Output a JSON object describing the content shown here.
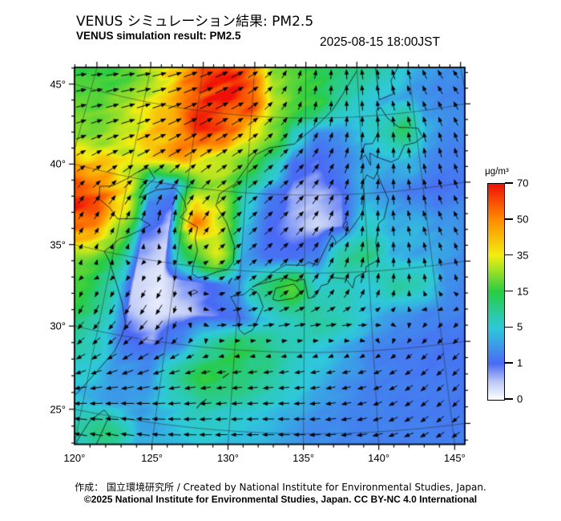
{
  "header": {
    "title_ja": "VENUS シミュレーション結果: PM2.5",
    "title_en": "VENUS simulation result: PM2.5",
    "datetime": "2025-08-15 18:00JST"
  },
  "footer": {
    "credit_line1": "作成： 国立環境研究所 / Created by National Institute for Environmental Studies, Japan.",
    "credit_line2": "©2025 National Institute for Environmental Studies, Japan. CC BY-NC 4.0 International"
  },
  "colorbar": {
    "unit": "μg/m³",
    "tick_values": [
      70,
      50,
      35,
      15,
      5,
      1,
      0
    ],
    "stops": [
      {
        "value": 0,
        "color": "#ffffff"
      },
      {
        "value": 0.5,
        "color": "#bcc8f5"
      },
      {
        "value": 1,
        "color": "#4a6af5"
      },
      {
        "value": 5,
        "color": "#2ec9da"
      },
      {
        "value": 15,
        "color": "#27cc44"
      },
      {
        "value": 35,
        "color": "#f2ee12"
      },
      {
        "value": 50,
        "color": "#ff8c00"
      },
      {
        "value": 70,
        "color": "#f01008"
      }
    ],
    "interval_values": [
      0,
      1,
      5,
      15,
      35,
      50,
      70
    ]
  },
  "axes": {
    "lon_ticks": [
      {
        "value": 120,
        "label": "120°"
      },
      {
        "value": 125,
        "label": "125°"
      },
      {
        "value": 130,
        "label": "130°"
      },
      {
        "value": 135,
        "label": "135°"
      },
      {
        "value": 140,
        "label": "140°"
      },
      {
        "value": 145,
        "label": "145°"
      }
    ],
    "lat_ticks": [
      {
        "value": 45,
        "label": "45°"
      },
      {
        "value": 40,
        "label": "40°"
      },
      {
        "value": 35,
        "label": "35°"
      },
      {
        "value": 30,
        "label": "30°"
      },
      {
        "value": 25,
        "label": "25°"
      }
    ]
  },
  "chart_data": {
    "type": "heatmap",
    "title": "VENUS simulation result: PM2.5",
    "units": "μg/m³",
    "field": {
      "lat_start": 22,
      "lat_step": 2,
      "lon_start": 116,
      "lon_step": 2,
      "values": [
        [
          3,
          4,
          6,
          8,
          4,
          3,
          3.5,
          3.5,
          3,
          2.5,
          2.5,
          2,
          2,
          1.8,
          1.8,
          1.8,
          1.8,
          1.8
        ],
        [
          3,
          4,
          8,
          11,
          4,
          4,
          4.5,
          4,
          4,
          3,
          2.5,
          2.2,
          2,
          2,
          1.8,
          1.8,
          1.8,
          1.8
        ],
        [
          4,
          5,
          4,
          3,
          3,
          5,
          8,
          6,
          5,
          3.5,
          2.5,
          2.2,
          2,
          1.8,
          1.8,
          1.8,
          1.8,
          1.8
        ],
        [
          5,
          7,
          6,
          3,
          2.5,
          9,
          15,
          12,
          9,
          6,
          4,
          2.5,
          2,
          1.8,
          1.6,
          1.6,
          1.5,
          1.5
        ],
        [
          9,
          12,
          7,
          1.2,
          0.7,
          2.5,
          9,
          15,
          12,
          7,
          5,
          3.5,
          2.2,
          1.6,
          1.6,
          1.5,
          1.4,
          1.4
        ],
        [
          16,
          17,
          9,
          0.4,
          0.2,
          0.4,
          0.8,
          1.2,
          5,
          7,
          9,
          7,
          4,
          2.5,
          2,
          2,
          1.8,
          1.8
        ],
        [
          26,
          21,
          11,
          0.4,
          0.2,
          0.8,
          1.2,
          3,
          11,
          19,
          6,
          7,
          5,
          9,
          7,
          2.5,
          2,
          2
        ],
        [
          55,
          45,
          24,
          0.8,
          0.4,
          17,
          37,
          3.5,
          1.2,
          1.2,
          2,
          9,
          11,
          4,
          3.5,
          3.5,
          2.5,
          2.2
        ],
        [
          66,
          58,
          38,
          2,
          0.6,
          55,
          32,
          5,
          1.2,
          0.7,
          0.4,
          0.7,
          6,
          4,
          4,
          2.5,
          2.5,
          2.2
        ],
        [
          46,
          42,
          33,
          4,
          2.2,
          22,
          26,
          7,
          1.8,
          0.6,
          0.6,
          0.9,
          4,
          2.5,
          1.8,
          1.2,
          1.5,
          1.8
        ],
        [
          24,
          28,
          33,
          46,
          48,
          38,
          28,
          20,
          9,
          1.2,
          0.9,
          1.8,
          3.5,
          4,
          5,
          2.5,
          2,
          2
        ],
        [
          20,
          26,
          36,
          44,
          54,
          64,
          58,
          42,
          24,
          7,
          2,
          2.5,
          5,
          8,
          13,
          4,
          2.5,
          2.5
        ],
        [
          16,
          20,
          28,
          38,
          54,
          64,
          67,
          60,
          28,
          20,
          17,
          9,
          6,
          4,
          3.5,
          2.5,
          2.2,
          2.2
        ],
        [
          18,
          22,
          30,
          38,
          48,
          60,
          64,
          48,
          26,
          20,
          15,
          11,
          11,
          9,
          6,
          4,
          3,
          3
        ]
      ]
    },
    "wind": {
      "lats": [
        22,
        26,
        29,
        31.5,
        34,
        38,
        42,
        46,
        49
      ],
      "lons": [
        114,
        119,
        124,
        129,
        134,
        139,
        144,
        150
      ],
      "u": [
        [
          -6,
          -7,
          -7,
          -7,
          -6,
          -6,
          -5,
          -5
        ],
        [
          -5,
          -6,
          -7,
          -6,
          -6,
          -5,
          -4,
          -4
        ],
        [
          -2,
          -3,
          -5,
          -4,
          -5,
          -4,
          -4,
          -4
        ],
        [
          -1,
          -1,
          -3,
          5,
          6,
          5,
          -2,
          -3
        ],
        [
          1,
          0,
          -1,
          3,
          4,
          2,
          0,
          -1
        ],
        [
          2,
          2,
          0,
          4,
          4,
          1,
          -1,
          -2
        ],
        [
          4,
          6,
          6,
          5,
          4,
          2,
          0,
          -1
        ],
        [
          5,
          7,
          7,
          6,
          1.5,
          0,
          -1,
          -2
        ],
        [
          5,
          6,
          6,
          5,
          1,
          0,
          -1,
          -2
        ]
      ],
      "v": [
        [
          0,
          1,
          1,
          0,
          0,
          0,
          -1,
          -2
        ],
        [
          -2,
          -2,
          -1,
          -1,
          0,
          -1,
          -3,
          -3
        ],
        [
          -3,
          -4,
          -4,
          -1,
          -1,
          -1,
          -3,
          -3
        ],
        [
          -4,
          -5,
          -6,
          1,
          1,
          0,
          -2,
          -2
        ],
        [
          4,
          2,
          -4,
          2,
          4,
          5,
          4,
          3
        ],
        [
          4,
          5,
          6,
          4,
          4,
          5,
          5,
          4
        ],
        [
          3,
          4,
          5,
          4,
          4,
          5,
          5,
          5
        ],
        [
          2,
          3,
          4,
          4,
          4,
          5,
          5,
          4
        ],
        [
          2,
          2,
          3,
          3,
          4,
          5,
          5,
          5
        ]
      ]
    },
    "coastlines": [
      [
        [
          22.5,
          114.5
        ],
        [
          23,
          116.5
        ],
        [
          24.5,
          118
        ],
        [
          26,
          119.5
        ],
        [
          27.5,
          120.5
        ],
        [
          29,
          121.5
        ],
        [
          30,
          121.8
        ],
        [
          30.8,
          121.9
        ],
        [
          32,
          121.4
        ],
        [
          33,
          120.8
        ],
        [
          34.5,
          119.8
        ],
        [
          35,
          119.3
        ],
        [
          36,
          120.3
        ],
        [
          36.2,
          120.8
        ],
        [
          37.2,
          122.5
        ],
        [
          37.5,
          121.5
        ],
        [
          37.2,
          119.8
        ],
        [
          37.8,
          119
        ],
        [
          38.2,
          118
        ],
        [
          39,
          117.8
        ],
        [
          39.2,
          118.8
        ],
        [
          39.8,
          119.8
        ],
        [
          40.5,
          120.8
        ],
        [
          40.8,
          121.5
        ],
        [
          40.2,
          122.2
        ],
        [
          39.5,
          121.5
        ],
        [
          38.8,
          121.2
        ],
        [
          39.5,
          122.5
        ],
        [
          39.8,
          124
        ],
        [
          39.5,
          124.5
        ],
        [
          39,
          125
        ],
        [
          38.5,
          125.2
        ],
        [
          38,
          124.8
        ],
        [
          37.5,
          126.3
        ],
        [
          36.8,
          126.2
        ],
        [
          36,
          126.5
        ],
        [
          35,
          126.3
        ],
        [
          34.5,
          126.3
        ],
        [
          34.3,
          126.8
        ],
        [
          34.5,
          127.5
        ],
        [
          34.8,
          128.2
        ],
        [
          35,
          129
        ],
        [
          35.5,
          129.4
        ],
        [
          36.5,
          129.4
        ],
        [
          38,
          128.6
        ],
        [
          39,
          127.6
        ],
        [
          39.8,
          127.8
        ],
        [
          40.5,
          129
        ],
        [
          41.5,
          129.8
        ],
        [
          42,
          130.2
        ],
        [
          42.5,
          130.6
        ],
        [
          43,
          131.8
        ],
        [
          43.3,
          134
        ],
        [
          44.5,
          136
        ],
        [
          45.5,
          137.5
        ],
        [
          46.5,
          138.5
        ],
        [
          48,
          140
        ]
      ],
      [
        [
          31,
          130.6
        ],
        [
          31.3,
          130.2
        ],
        [
          32,
          130.2
        ],
        [
          32.8,
          129.8
        ],
        [
          33.3,
          129.4
        ],
        [
          33.5,
          130.4
        ],
        [
          33.9,
          130.9
        ],
        [
          33.6,
          131.5
        ],
        [
          33.2,
          131.7
        ],
        [
          32.8,
          131.9
        ],
        [
          31.9,
          131.5
        ],
        [
          31.3,
          131.2
        ],
        [
          31,
          130.6
        ]
      ],
      [
        [
          33.3,
          132.6
        ],
        [
          34,
          132.8
        ],
        [
          34.3,
          134.2
        ],
        [
          33.8,
          134.7
        ],
        [
          33.4,
          134.2
        ],
        [
          33.2,
          133
        ],
        [
          33.3,
          132.6
        ]
      ],
      [
        [
          34,
          131
        ],
        [
          34.4,
          131.8
        ],
        [
          35,
          132.5
        ],
        [
          35.5,
          133.5
        ],
        [
          35.5,
          135
        ],
        [
          35.7,
          135.3
        ],
        [
          35.5,
          136
        ],
        [
          36.8,
          136.8
        ],
        [
          37.4,
          137.2
        ],
        [
          37,
          137.5
        ],
        [
          36.8,
          137.4
        ],
        [
          37.5,
          138.5
        ],
        [
          38,
          139
        ],
        [
          38.8,
          139.8
        ],
        [
          39.9,
          140
        ],
        [
          40.6,
          139.9
        ],
        [
          41.2,
          140.3
        ],
        [
          40.9,
          140.9
        ],
        [
          41.3,
          141.2
        ],
        [
          40.6,
          141.5
        ],
        [
          39.5,
          142
        ],
        [
          38.3,
          141.5
        ],
        [
          38,
          141
        ],
        [
          37.8,
          141
        ],
        [
          36.8,
          140.7
        ],
        [
          35.7,
          140.8
        ],
        [
          35.3,
          139.8
        ],
        [
          35,
          139.8
        ],
        [
          34.7,
          139
        ],
        [
          34.6,
          138.9
        ],
        [
          34,
          138.7
        ],
        [
          34.6,
          138.2
        ],
        [
          34.7,
          137.2
        ],
        [
          34.6,
          136.9
        ],
        [
          34.3,
          136.8
        ],
        [
          34.2,
          136.3
        ],
        [
          33.5,
          135.8
        ],
        [
          33.4,
          135.3
        ],
        [
          34.2,
          135.1
        ],
        [
          34.6,
          135
        ],
        [
          34.5,
          134.2
        ],
        [
          34.7,
          133.5
        ],
        [
          34.4,
          132.3
        ],
        [
          34.2,
          131.5
        ],
        [
          34,
          131
        ]
      ],
      [
        [
          41.8,
          140.7
        ],
        [
          42.5,
          140.3
        ],
        [
          42.2,
          139.8
        ],
        [
          43.2,
          140.3
        ],
        [
          43.2,
          141
        ],
        [
          43.9,
          141.6
        ],
        [
          44.5,
          141.6
        ],
        [
          45.4,
          141.6
        ],
        [
          45.5,
          142
        ],
        [
          44.8,
          142.5
        ],
        [
          44.1,
          143.5
        ],
        [
          44,
          144.5
        ],
        [
          43.9,
          145.2
        ],
        [
          43.3,
          145.5
        ],
        [
          43,
          144.8
        ],
        [
          42.9,
          143.8
        ],
        [
          42.1,
          143.2
        ],
        [
          41.9,
          142.5
        ],
        [
          42.3,
          141.3
        ],
        [
          42.6,
          140.7
        ],
        [
          41.8,
          140.7
        ]
      ],
      [
        [
          25.3,
          121.5
        ],
        [
          24.5,
          120.7
        ],
        [
          23.1,
          120.1
        ],
        [
          22,
          120.8
        ],
        [
          22.3,
          121.1
        ],
        [
          23.5,
          121.5
        ],
        [
          25,
          121.9
        ],
        [
          25.3,
          121.5
        ]
      ],
      [
        [
          48.5,
          141.8
        ],
        [
          46.7,
          141.9
        ],
        [
          46,
          141.9
        ],
        [
          46.3,
          143.3
        ],
        [
          47.2,
          143.2
        ],
        [
          48.5,
          144.5
        ]
      ],
      [
        [
          33.3,
          126.2
        ],
        [
          33.5,
          126.6
        ],
        [
          33.4,
          126.9
        ],
        [
          33.2,
          126.5
        ],
        [
          33.3,
          126.2
        ]
      ],
      [
        [
          34.1,
          129.2
        ],
        [
          34.5,
          129.4
        ],
        [
          34.3,
          129.2
        ],
        [
          34.1,
          129.2
        ]
      ],
      [
        [
          37.8,
          138.2
        ],
        [
          38.1,
          138.5
        ],
        [
          38.3,
          138.4
        ],
        [
          38,
          138.1
        ],
        [
          37.8,
          138.2
        ]
      ],
      [
        [
          26.2,
          127.7
        ],
        [
          26.6,
          128
        ],
        [
          26.8,
          128.3
        ],
        [
          26.5,
          127.9
        ],
        [
          26.2,
          127.7
        ]
      ],
      [
        [
          28.2,
          129.3
        ],
        [
          28.5,
          129.7
        ],
        [
          28.3,
          129.4
        ],
        [
          28.2,
          129.3
        ]
      ]
    ]
  }
}
